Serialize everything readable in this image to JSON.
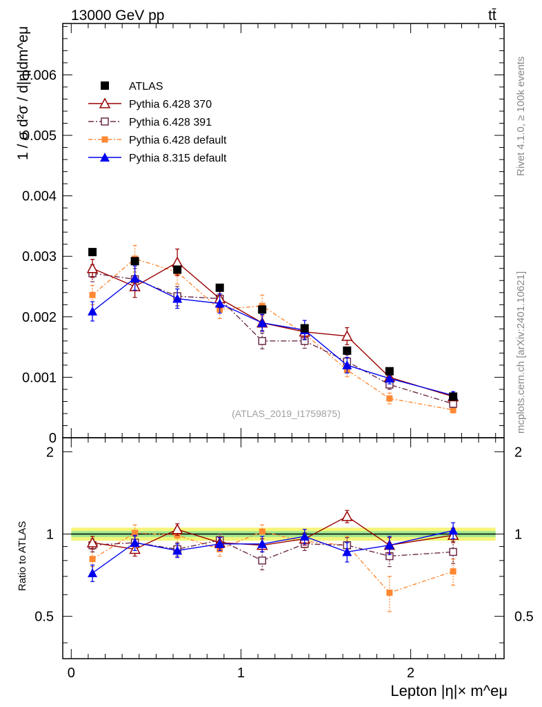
{
  "header": {
    "left": "13000 GeV pp",
    "right": "tt̄",
    "side_top": "Rivet 4.1.0, ≥ 100k events",
    "side_bottom": "mcplots.cern.ch [arXiv:2401.10621]",
    "analysis": "(ATLAS_2019_I1759875)"
  },
  "chart_data": [
    {
      "type": "line",
      "panel": "main",
      "ylabel": "1 / σ  d²σ / d|η|dm^eμ",
      "ylim": [
        0,
        0.00685
      ],
      "xlim": [
        -0.05,
        2.55
      ],
      "yticks": [
        0,
        0.001,
        0.002,
        0.003,
        0.004,
        0.005,
        0.006
      ],
      "ytick_labels": [
        "0",
        "0.001",
        "0.002",
        "0.003",
        "0.004",
        "0.005",
        "0.006"
      ],
      "x": [
        0.125,
        0.375,
        0.625,
        0.875,
        1.125,
        1.375,
        1.625,
        1.875,
        2.25
      ],
      "legend_position": "top-left",
      "series": [
        {
          "key": "atlas",
          "name": "ATLAS",
          "color": "#000000",
          "marker": "square-filled",
          "line": "none",
          "values": [
            0.00307,
            0.00292,
            0.00278,
            0.00248,
            0.00212,
            0.00181,
            0.00144,
            0.0011,
            0.00068
          ],
          "errors": [
            5e-05,
            5e-05,
            4e-05,
            4e-05,
            4e-05,
            4e-05,
            3e-05,
            3e-05,
            3e-05
          ]
        },
        {
          "key": "p370",
          "name": "Pythia 6.428 370",
          "color": "#990000",
          "marker": "triangle-open",
          "line": "solid",
          "values": [
            0.0028,
            0.0025,
            0.0029,
            0.0023,
            0.0019,
            0.00175,
            0.00168,
            0.001,
            0.00068
          ],
          "errors": [
            0.00015,
            0.00018,
            0.00022,
            0.00015,
            0.00013,
            0.00012,
            0.00014,
            8e-05,
            6e-05
          ]
        },
        {
          "key": "p391",
          "name": "Pythia 6.428 391",
          "color": "#6b2a48",
          "marker": "square-open",
          "line": "dashdot",
          "values": [
            0.00272,
            0.00262,
            0.00234,
            0.0023,
            0.0016,
            0.0016,
            0.00126,
            0.00088,
            0.00056
          ],
          "errors": [
            0.00014,
            0.00018,
            0.00016,
            0.00014,
            0.00013,
            0.00012,
            0.00011,
            8e-05,
            6e-05
          ]
        },
        {
          "key": "p6def",
          "name": "Pythia 6.428 default",
          "color": "#ff8833",
          "marker": "square-filled-small",
          "line": "dashdot-orange",
          "values": [
            0.00236,
            0.00296,
            0.00274,
            0.00212,
            0.00218,
            0.00172,
            0.00112,
            0.00065,
            0.00046
          ],
          "errors": [
            0.00016,
            0.00022,
            0.0002,
            0.00015,
            0.00018,
            0.00013,
            0.00011,
            9e-05,
            5e-05
          ]
        },
        {
          "key": "p8def",
          "name": "Pythia 8.315 default",
          "color": "#0000ee",
          "marker": "triangle-filled",
          "line": "solid",
          "values": [
            0.00209,
            0.00264,
            0.0023,
            0.00222,
            0.0019,
            0.00178,
            0.0012,
            0.00098,
            0.0007
          ],
          "errors": [
            0.00016,
            0.0002,
            0.00016,
            0.00016,
            0.00014,
            0.00016,
            0.00013,
            9e-05,
            6e-05
          ]
        }
      ]
    },
    {
      "type": "line",
      "panel": "ratio",
      "ylabel": "Ratio to ATLAS",
      "xlabel": "Lepton |η|× m^eμ",
      "ylim": [
        0.35,
        2.25
      ],
      "xlim": [
        -0.05,
        2.55
      ],
      "yticks": [
        0.5,
        1,
        2
      ],
      "ytick_labels": [
        "0.5",
        "1",
        "2"
      ],
      "xticks": [
        0,
        1,
        2
      ],
      "xtick_labels": [
        "0",
        "1",
        "2"
      ],
      "reference": 1,
      "band_inner": 0.025,
      "band_outer": 0.055,
      "x": [
        0.125,
        0.375,
        0.625,
        0.875,
        1.125,
        1.375,
        1.625,
        1.875,
        2.25
      ],
      "series": [
        {
          "key": "p370",
          "name": "Pythia 6.428 370",
          "values": [
            0.93,
            0.88,
            1.04,
            0.93,
            0.91,
            0.96,
            1.16,
            0.91,
            0.99
          ],
          "errors": [
            0.05,
            0.05,
            0.05,
            0.04,
            0.05,
            0.05,
            0.06,
            0.06,
            0.06
          ]
        },
        {
          "key": "p391",
          "name": "Pythia 6.428 391",
          "values": [
            0.91,
            0.93,
            0.88,
            0.95,
            0.8,
            0.92,
            0.91,
            0.83,
            0.86
          ],
          "errors": [
            0.05,
            0.05,
            0.05,
            0.05,
            0.06,
            0.05,
            0.06,
            0.07,
            0.08
          ]
        },
        {
          "key": "p6def",
          "name": "Pythia 6.428 default",
          "values": [
            0.81,
            1.01,
            0.99,
            0.88,
            1.02,
            0.94,
            0.91,
            0.61,
            0.73
          ],
          "errors": [
            0.05,
            0.07,
            0.07,
            0.05,
            0.06,
            0.05,
            0.07,
            0.09,
            0.08
          ]
        },
        {
          "key": "p8def",
          "name": "Pythia 8.315 default",
          "values": [
            0.72,
            0.93,
            0.87,
            0.92,
            0.92,
            0.98,
            0.86,
            0.91,
            1.03
          ],
          "errors": [
            0.05,
            0.06,
            0.05,
            0.05,
            0.06,
            0.06,
            0.07,
            0.07,
            0.07
          ]
        }
      ]
    }
  ]
}
